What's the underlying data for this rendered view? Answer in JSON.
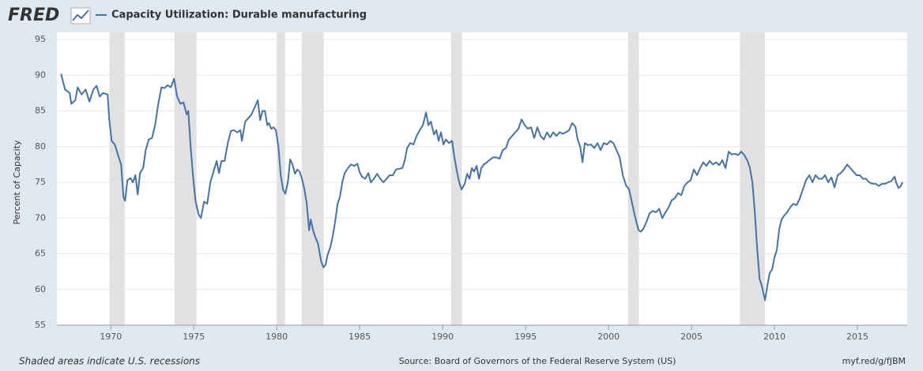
{
  "logo": "FRED",
  "chart_data": {
    "type": "line",
    "title": "Capacity Utilization: Durable manufacturing",
    "y_label": "Percent of Capacity",
    "recession_note": "Shaded areas indicate U.S. recessions",
    "source": "Source: Board of Governors of the Federal Reserve System (US)",
    "link": "myf.red/g/fJBM",
    "xlim": [
      1966.75,
      2018.0
    ],
    "ylim": [
      55,
      95
    ],
    "xticks": [
      1970,
      1975,
      1980,
      1985,
      1990,
      1995,
      2000,
      2005,
      2010,
      2015
    ],
    "yticks": [
      55,
      60,
      65,
      70,
      75,
      80,
      85,
      90,
      95
    ],
    "grid": true,
    "recession_color": "#e1e1e1",
    "recessions": [
      [
        1969.92,
        1970.83
      ],
      [
        1973.83,
        1975.17
      ],
      [
        1980.0,
        1980.5
      ],
      [
        1981.5,
        1982.83
      ],
      [
        1990.5,
        1991.17
      ],
      [
        2001.17,
        2001.83
      ],
      [
        2007.92,
        2009.42
      ]
    ],
    "series": [
      {
        "name": "Capacity Utilization: Durable manufacturing",
        "color": "#4572a7",
        "x": [
          1967.0,
          1967.24,
          1967.52,
          1967.62,
          1967.86,
          1968.0,
          1968.24,
          1968.48,
          1968.71,
          1968.95,
          1969.14,
          1969.33,
          1969.52,
          1969.81,
          1969.9,
          1970.05,
          1970.24,
          1970.48,
          1970.62,
          1970.76,
          1970.86,
          1971.0,
          1971.19,
          1971.33,
          1971.48,
          1971.62,
          1971.76,
          1971.95,
          1972.1,
          1972.29,
          1972.48,
          1972.67,
          1972.86,
          1973.05,
          1973.24,
          1973.43,
          1973.62,
          1973.81,
          1974.0,
          1974.19,
          1974.38,
          1974.57,
          1974.67,
          1974.81,
          1974.95,
          1975.1,
          1975.29,
          1975.43,
          1975.62,
          1975.81,
          1976.0,
          1976.19,
          1976.38,
          1976.52,
          1976.67,
          1976.86,
          1977.05,
          1977.24,
          1977.43,
          1977.62,
          1977.81,
          1977.9,
          1978.1,
          1978.29,
          1978.48,
          1978.67,
          1978.86,
          1979.0,
          1979.14,
          1979.29,
          1979.43,
          1979.52,
          1979.67,
          1979.81,
          1979.95,
          1980.1,
          1980.24,
          1980.38,
          1980.52,
          1980.67,
          1980.81,
          1980.95,
          1981.1,
          1981.24,
          1981.38,
          1981.52,
          1981.67,
          1981.81,
          1981.95,
          1982.05,
          1982.19,
          1982.33,
          1982.48,
          1982.67,
          1982.81,
          1982.95,
          1983.05,
          1983.24,
          1983.38,
          1983.52,
          1983.67,
          1983.81,
          1983.95,
          1984.1,
          1984.29,
          1984.48,
          1984.67,
          1984.86,
          1985.0,
          1985.14,
          1985.33,
          1985.52,
          1985.67,
          1985.86,
          1986.05,
          1986.24,
          1986.43,
          1986.62,
          1986.81,
          1987.0,
          1987.19,
          1987.38,
          1987.57,
          1987.71,
          1987.86,
          1988.05,
          1988.24,
          1988.43,
          1988.62,
          1988.81,
          1989.0,
          1989.14,
          1989.29,
          1989.48,
          1989.62,
          1989.76,
          1989.9,
          1990.05,
          1990.19,
          1990.38,
          1990.57,
          1990.71,
          1990.86,
          1991.0,
          1991.14,
          1991.33,
          1991.48,
          1991.62,
          1991.76,
          1991.9,
          1992.05,
          1992.19,
          1992.33,
          1992.48,
          1992.67,
          1992.86,
          1993.05,
          1993.24,
          1993.43,
          1993.62,
          1993.81,
          1994.0,
          1994.19,
          1994.38,
          1994.57,
          1994.76,
          1994.95,
          1995.14,
          1995.33,
          1995.52,
          1995.71,
          1995.9,
          1996.1,
          1996.29,
          1996.48,
          1996.67,
          1996.86,
          1997.05,
          1997.24,
          1997.43,
          1997.62,
          1997.81,
          1998.0,
          1998.14,
          1998.29,
          1998.43,
          1998.57,
          1998.76,
          1998.95,
          1999.14,
          1999.33,
          1999.52,
          1999.71,
          1999.9,
          2000.1,
          2000.29,
          2000.48,
          2000.67,
          2000.86,
          2001.05,
          2001.24,
          2001.38,
          2001.52,
          2001.67,
          2001.81,
          2001.95,
          2002.1,
          2002.29,
          2002.48,
          2002.67,
          2002.86,
          2003.05,
          2003.24,
          2003.43,
          2003.62,
          2003.81,
          2004.0,
          2004.19,
          2004.38,
          2004.57,
          2004.76,
          2004.95,
          2005.14,
          2005.33,
          2005.52,
          2005.71,
          2005.9,
          2006.1,
          2006.29,
          2006.48,
          2006.67,
          2006.86,
          2007.05,
          2007.24,
          2007.43,
          2007.62,
          2007.81,
          2008.0,
          2008.19,
          2008.38,
          2008.52,
          2008.67,
          2008.81,
          2008.95,
          2009.1,
          2009.24,
          2009.43,
          2009.57,
          2009.71,
          2009.86,
          2010.0,
          2010.14,
          2010.29,
          2010.43,
          2010.57,
          2010.76,
          2010.95,
          2011.14,
          2011.33,
          2011.52,
          2011.71,
          2011.9,
          2012.1,
          2012.29,
          2012.48,
          2012.67,
          2012.86,
          2013.05,
          2013.24,
          2013.43,
          2013.62,
          2013.81,
          2014.0,
          2014.19,
          2014.38,
          2014.57,
          2014.76,
          2014.95,
          2015.14,
          2015.33,
          2015.52,
          2015.71,
          2015.9,
          2016.1,
          2016.29,
          2016.48,
          2016.67,
          2016.86,
          2017.05,
          2017.24,
          2017.33,
          2017.48,
          2017.62,
          2017.71
        ],
        "values": [
          90.2,
          88,
          87.5,
          86,
          86.5,
          88.3,
          87.3,
          88,
          86.3,
          88,
          88.5,
          87,
          87.5,
          87.3,
          84,
          80.8,
          80.3,
          78.5,
          77.5,
          73,
          72.4,
          75.3,
          75.6,
          75,
          76,
          73.3,
          76.3,
          77,
          79.5,
          81,
          81.2,
          83,
          86,
          88.3,
          88.2,
          88.6,
          88.3,
          89.5,
          87,
          86,
          86.2,
          84.5,
          85,
          80,
          76,
          72.5,
          70.5,
          70,
          72.3,
          72,
          75,
          76.5,
          78,
          76.3,
          78,
          78,
          80.5,
          82.2,
          82.3,
          82,
          82.3,
          80.8,
          83.5,
          84,
          84.5,
          85.5,
          86.5,
          83.7,
          85,
          85,
          83,
          83.3,
          82.5,
          82.7,
          82.3,
          80,
          76,
          74,
          73.4,
          75,
          78.2,
          77.5,
          76.2,
          76.8,
          76.5,
          75.5,
          74,
          72,
          68.3,
          69.8,
          68.3,
          67.3,
          66.5,
          64,
          63.1,
          63.5,
          64.7,
          66,
          67.5,
          69.5,
          72,
          73,
          75,
          76.3,
          77,
          77.5,
          77.3,
          77.6,
          76.4,
          75.8,
          75.5,
          76.3,
          75,
          75.5,
          76.2,
          75.5,
          75,
          75.5,
          76,
          76,
          76.8,
          76.9,
          77,
          78,
          79.8,
          80.5,
          80.3,
          81.5,
          82.3,
          83,
          84.8,
          83,
          83.5,
          81.7,
          82.3,
          80.8,
          82,
          80.3,
          81,
          80.5,
          80.8,
          78.5,
          76.5,
          75,
          74,
          74.8,
          76.2,
          75.5,
          77,
          76.5,
          77.3,
          75.5,
          77,
          77.5,
          77.8,
          78.2,
          78.5,
          78.5,
          78.3,
          79.5,
          79.8,
          81,
          81.5,
          82,
          82.5,
          83.8,
          83,
          82.5,
          82.7,
          81.2,
          82.7,
          81.5,
          81,
          82,
          81.3,
          82,
          81.5,
          82,
          81.8,
          82,
          82.3,
          83.3,
          82.8,
          81,
          80,
          77.8,
          80.5,
          80.2,
          80.3,
          79.8,
          80.5,
          79.5,
          80.5,
          80.3,
          80.8,
          80.5,
          79.5,
          78.5,
          76,
          74.6,
          74,
          72.5,
          71,
          69.5,
          68.3,
          68.1,
          68.5,
          69.5,
          70.7,
          71,
          70.8,
          71.3,
          70,
          70.8,
          71.5,
          72.5,
          72.8,
          73.5,
          73.2,
          74.5,
          75,
          75.3,
          76.8,
          76,
          77,
          77.8,
          77.3,
          78,
          77.5,
          77.8,
          77.4,
          78.1,
          77,
          79.3,
          78.9,
          79,
          78.8,
          79.3,
          78.8,
          78,
          77,
          75,
          71,
          66,
          61.5,
          60.5,
          58.5,
          60.5,
          62.3,
          62.8,
          64.5,
          65.5,
          68.5,
          69.8,
          70.3,
          70.8,
          71.5,
          72,
          71.8,
          72.7,
          74,
          75.3,
          76,
          75,
          76,
          75.5,
          75.5,
          76,
          75,
          75.7,
          74.3,
          76,
          76.3,
          76.8,
          77.5,
          77,
          76.5,
          76,
          76,
          75.5,
          75.5,
          75,
          74.8,
          74.8,
          74.5,
          74.8,
          74.8,
          75,
          75.2,
          75.8,
          75,
          74.2,
          74.5,
          75
        ]
      }
    ]
  }
}
